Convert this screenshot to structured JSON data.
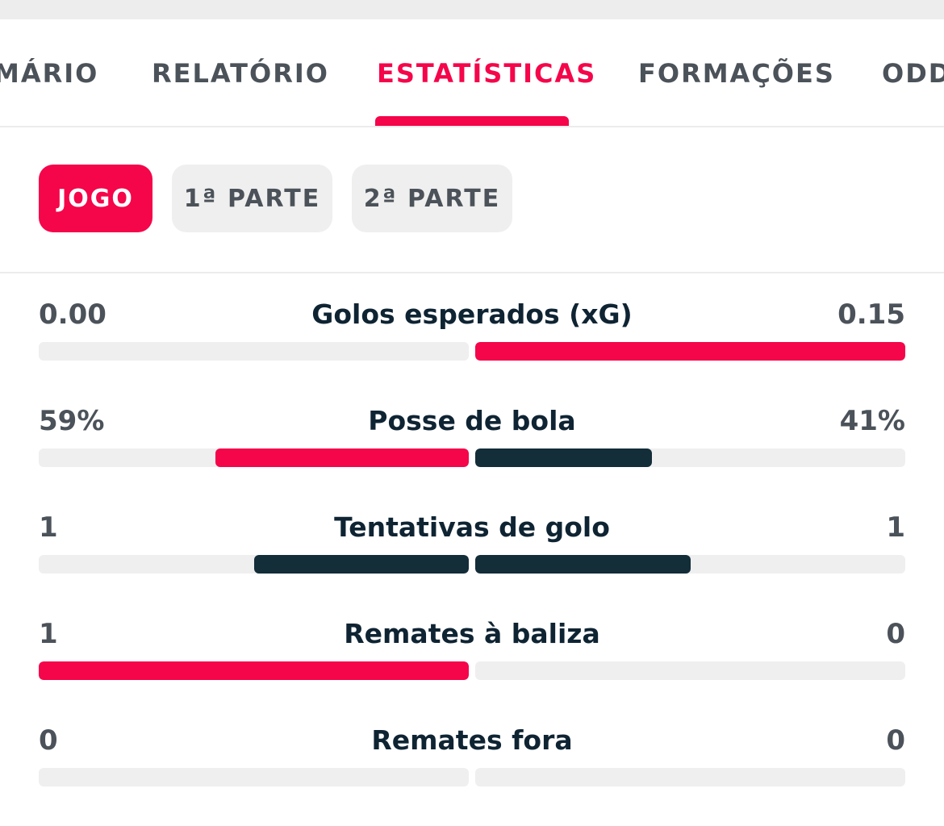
{
  "tabs": [
    {
      "label": "MÁRIO",
      "active": false
    },
    {
      "label": "RELATÓRIO",
      "active": false
    },
    {
      "label": "ESTATÍSTICAS",
      "active": true
    },
    {
      "label": "FORMAÇÕES",
      "active": false
    },
    {
      "label": "ODD",
      "active": false
    }
  ],
  "periods": [
    {
      "label": "JOGO",
      "active": true
    },
    {
      "label": "1ª PARTE",
      "active": false
    },
    {
      "label": "2ª PARTE",
      "active": false
    }
  ],
  "colors": {
    "accent": "#f5054a",
    "dark": "#132d39",
    "track": "#efefef"
  },
  "stats": [
    {
      "label": "Golos esperados (xG)",
      "home": "0.00",
      "away": "0.15",
      "home_fraction": 0.0,
      "away_fraction": 1.0,
      "home_color": "red",
      "away_color": "red"
    },
    {
      "label": "Posse de bola",
      "home": "59%",
      "away": "41%",
      "home_fraction": 0.59,
      "away_fraction": 0.41,
      "home_color": "red",
      "away_color": "dark"
    },
    {
      "label": "Tentativas de golo",
      "home": "1",
      "away": "1",
      "home_fraction": 0.5,
      "away_fraction": 0.5,
      "home_color": "dark",
      "away_color": "dark"
    },
    {
      "label": "Remates à baliza",
      "home": "1",
      "away": "0",
      "home_fraction": 1.0,
      "away_fraction": 0.0,
      "home_color": "red",
      "away_color": "red"
    },
    {
      "label": "Remates fora",
      "home": "0",
      "away": "0",
      "home_fraction": 0.0,
      "away_fraction": 0.0,
      "home_color": "red",
      "away_color": "red"
    }
  ]
}
